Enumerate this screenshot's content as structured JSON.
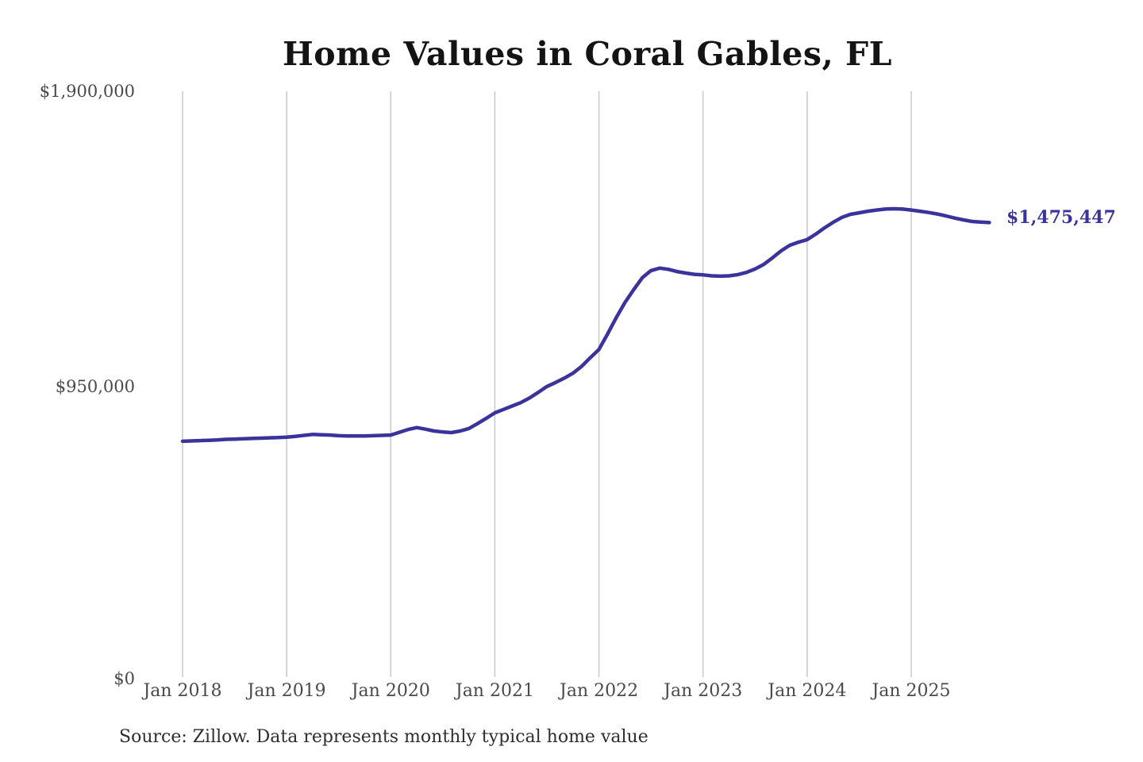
{
  "page": {
    "background": "#ffffff"
  },
  "chart_data": {
    "type": "line",
    "title": "Home Values in Coral Gables, FL",
    "xlabel": "",
    "ylabel": "",
    "ylim": [
      0,
      1900000
    ],
    "y_tick_labels": [
      "$1,900,000",
      "$950,000",
      "$0"
    ],
    "y_tick_values": [
      1900000,
      950000,
      0
    ],
    "x_tick_labels": [
      "Jan 2018",
      "Jan 2019",
      "Jan 2020",
      "Jan 2021",
      "Jan 2022",
      "Jan 2023",
      "Jan 2024",
      "Jan 2025"
    ],
    "grid": "vertical-only",
    "legend": "none",
    "colors": {
      "line": "#3a339c",
      "grid": "#c8c8c8",
      "title": "#141414",
      "ticks": "#4a4a4a",
      "source": "#2e2e2e"
    },
    "annotation": {
      "label": "$1,475,447",
      "value": 1475447,
      "color": "#3a339c"
    },
    "source_note": "Source: Zillow. Data represents monthly typical home value",
    "series": [
      {
        "name": "Typical home value",
        "frequency": "monthly",
        "start_month": "2018-01",
        "end_month": "2025-10",
        "values": [
          768000,
          769000,
          770000,
          771000,
          772000,
          774000,
          775000,
          776000,
          777000,
          778000,
          779000,
          780000,
          781000,
          784000,
          787000,
          790000,
          789000,
          788000,
          786000,
          785000,
          785000,
          785000,
          786000,
          787000,
          788000,
          797000,
          806000,
          812000,
          807000,
          801000,
          798000,
          796000,
          801000,
          809000,
          825000,
          842000,
          860000,
          871000,
          882000,
          893000,
          908000,
          926000,
          945000,
          958000,
          972000,
          988000,
          1010000,
          1038000,
          1065000,
          1115000,
          1168000,
          1217000,
          1258000,
          1297000,
          1320000,
          1328000,
          1324000,
          1317000,
          1312000,
          1308000,
          1306000,
          1303000,
          1302000,
          1303000,
          1307000,
          1314000,
          1325000,
          1340000,
          1361000,
          1384000,
          1402000,
          1412000,
          1420000,
          1438000,
          1458000,
          1476000,
          1492000,
          1502000,
          1507000,
          1512000,
          1516000,
          1519000,
          1520000,
          1519000,
          1516000,
          1512000,
          1508000,
          1503000,
          1497000,
          1490000,
          1484000,
          1479000,
          1477000,
          1475447
        ]
      }
    ]
  }
}
